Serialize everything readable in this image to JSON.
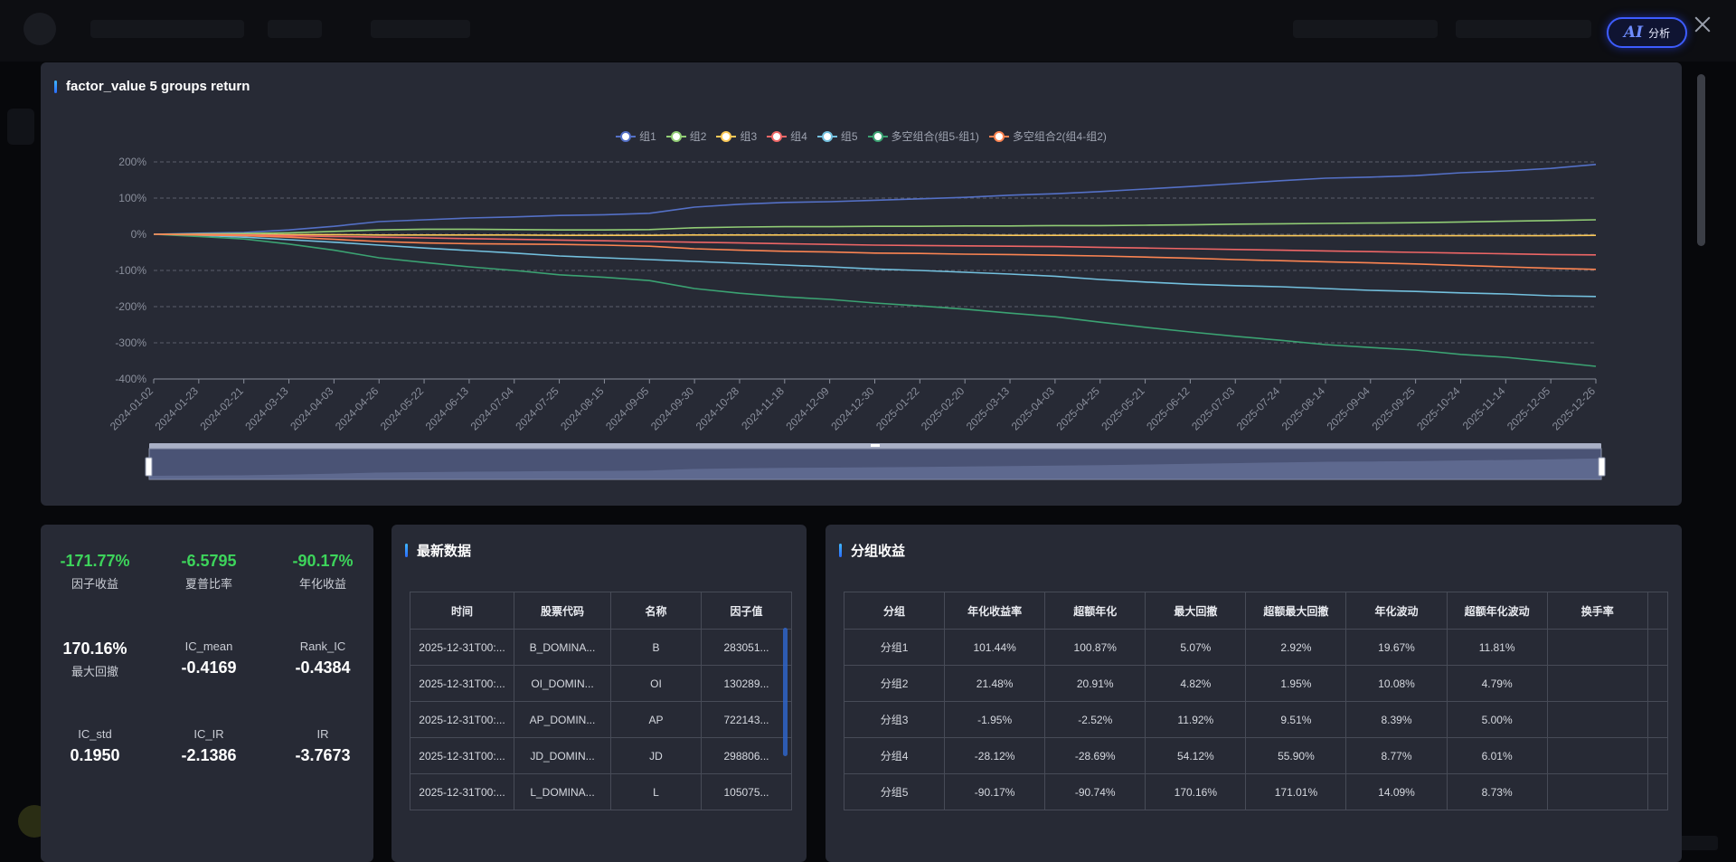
{
  "chart": {
    "title": "factor_value 5 groups return",
    "legend": [
      {
        "name": "组1",
        "color": "#5470c6"
      },
      {
        "name": "组2",
        "color": "#91cc75"
      },
      {
        "name": "组3",
        "color": "#fac858"
      },
      {
        "name": "组4",
        "color": "#ee6666"
      },
      {
        "name": "组5",
        "color": "#73c0de"
      },
      {
        "name": "多空组合(组5-组1)",
        "color": "#3ba272"
      },
      {
        "name": "多空组合2(组4-组2)",
        "color": "#fc8452"
      }
    ]
  },
  "chart_data": {
    "type": "line",
    "title": "factor_value 5 groups return",
    "xlabel": "",
    "ylabel": "",
    "x": [
      "2024-01-02",
      "2024-01-23",
      "2024-02-21",
      "2024-03-13",
      "2024-04-03",
      "2024-04-26",
      "2024-05-22",
      "2024-06-13",
      "2024-07-04",
      "2024-07-25",
      "2024-08-15",
      "2024-09-05",
      "2024-09-30",
      "2024-10-28",
      "2024-11-18",
      "2024-12-09",
      "2024-12-30",
      "2025-01-22",
      "2025-02-20",
      "2025-03-13",
      "2025-04-03",
      "2025-04-25",
      "2025-05-21",
      "2025-06-12",
      "2025-07-03",
      "2025-07-24",
      "2025-08-14",
      "2025-09-04",
      "2025-09-25",
      "2025-10-24",
      "2025-11-14",
      "2025-12-05",
      "2025-12-26"
    ],
    "yticks": [
      "200%",
      "100%",
      "0%",
      "-100%",
      "-200%",
      "-300%",
      "-400%"
    ],
    "ylim": [
      -400,
      200
    ],
    "grid": true,
    "legend_position": "top",
    "series": [
      {
        "name": "组1",
        "values": [
          0,
          3,
          5,
          12,
          22,
          35,
          40,
          45,
          48,
          52,
          54,
          58,
          75,
          83,
          88,
          90,
          94,
          98,
          102,
          108,
          112,
          118,
          125,
          132,
          140,
          148,
          155,
          158,
          162,
          170,
          175,
          182,
          193
        ]
      },
      {
        "name": "组2",
        "values": [
          0,
          1,
          2,
          4,
          8,
          12,
          14,
          14,
          13,
          12,
          12,
          13,
          18,
          20,
          21,
          21,
          22,
          22,
          23,
          23,
          24,
          24,
          25,
          26,
          28,
          29,
          30,
          31,
          32,
          34,
          36,
          38,
          40
        ]
      },
      {
        "name": "组3",
        "values": [
          0,
          0,
          -1,
          -1,
          -1,
          -2,
          -2,
          -2,
          -2,
          -3,
          -3,
          -3,
          -2,
          -2,
          -2,
          -2,
          -2,
          -2,
          -2,
          -3,
          -3,
          -3,
          -3,
          -3,
          -4,
          -4,
          -4,
          -4,
          -4,
          -4,
          -4,
          -4,
          -3
        ]
      },
      {
        "name": "组4",
        "values": [
          0,
          -1,
          -2,
          -4,
          -6,
          -8,
          -10,
          -12,
          -14,
          -16,
          -18,
          -20,
          -22,
          -24,
          -26,
          -28,
          -30,
          -31,
          -32,
          -33,
          -34,
          -36,
          -38,
          -40,
          -42,
          -44,
          -46,
          -48,
          -50,
          -52,
          -54,
          -56,
          -57
        ]
      },
      {
        "name": "组5",
        "values": [
          0,
          -3,
          -8,
          -15,
          -22,
          -30,
          -38,
          -45,
          -52,
          -60,
          -65,
          -70,
          -75,
          -80,
          -85,
          -90,
          -96,
          -100,
          -105,
          -110,
          -116,
          -125,
          -132,
          -138,
          -142,
          -145,
          -150,
          -155,
          -158,
          -162,
          -165,
          -170,
          -172
        ]
      },
      {
        "name": "多空组合(组5-组1)",
        "values": [
          0,
          -6,
          -13,
          -27,
          -44,
          -65,
          -78,
          -90,
          -100,
          -112,
          -119,
          -128,
          -150,
          -163,
          -173,
          -180,
          -190,
          -198,
          -207,
          -218,
          -228,
          -243,
          -257,
          -270,
          -282,
          -293,
          -305,
          -313,
          -320,
          -332,
          -340,
          -352,
          -365
        ]
      },
      {
        "name": "多空组合2(组4-组2)",
        "values": [
          0,
          -2,
          -4,
          -8,
          -14,
          -20,
          -24,
          -26,
          -27,
          -28,
          -30,
          -33,
          -40,
          -44,
          -47,
          -49,
          -52,
          -53,
          -55,
          -56,
          -58,
          -60,
          -63,
          -66,
          -70,
          -73,
          -76,
          -79,
          -82,
          -86,
          -90,
          -94,
          -97
        ]
      }
    ]
  },
  "stats": {
    "factor_return": {
      "value": "-171.77%",
      "label": "因子收益"
    },
    "sharpe": {
      "value": "-6.5795",
      "label": "夏普比率"
    },
    "annual_return": {
      "value": "-90.17%",
      "label": "年化收益"
    },
    "max_drawdown": {
      "value": "170.16%",
      "label": "最大回撤"
    },
    "ic_mean": {
      "value": "-0.4169",
      "label": "IC_mean"
    },
    "rank_ic": {
      "value": "-0.4384",
      "label": "Rank_IC"
    },
    "ic_std": {
      "value": "0.1950",
      "label": "IC_std"
    },
    "ic_ir": {
      "value": "-2.1386",
      "label": "IC_IR"
    },
    "ir": {
      "value": "-3.7673",
      "label": "IR"
    }
  },
  "latest": {
    "title": "最新数据",
    "headers": [
      "时间",
      "股票代码",
      "名称",
      "因子值"
    ],
    "rows": [
      [
        "2025-12-31T00:...",
        "B_DOMINA...",
        "B",
        "283051..."
      ],
      [
        "2025-12-31T00:...",
        "OI_DOMIN...",
        "OI",
        "130289..."
      ],
      [
        "2025-12-31T00:...",
        "AP_DOMIN...",
        "AP",
        "722143..."
      ],
      [
        "2025-12-31T00:...",
        "JD_DOMIN...",
        "JD",
        "298806..."
      ],
      [
        "2025-12-31T00:...",
        "L_DOMINA...",
        "L",
        "105075..."
      ]
    ]
  },
  "groups": {
    "title": "分组收益",
    "headers": [
      "分组",
      "年化收益率",
      "超额年化",
      "最大回撤",
      "超额最大回撤",
      "年化波动",
      "超额年化波动",
      "换手率",
      ""
    ],
    "rows": [
      [
        "分组1",
        "101.44%",
        "100.87%",
        "5.07%",
        "2.92%",
        "19.67%",
        "11.81%",
        "",
        ""
      ],
      [
        "分组2",
        "21.48%",
        "20.91%",
        "4.82%",
        "1.95%",
        "10.08%",
        "4.79%",
        "",
        ""
      ],
      [
        "分组3",
        "-1.95%",
        "-2.52%",
        "11.92%",
        "9.51%",
        "8.39%",
        "5.00%",
        "",
        ""
      ],
      [
        "分组4",
        "-28.12%",
        "-28.69%",
        "54.12%",
        "55.90%",
        "8.77%",
        "6.01%",
        "",
        ""
      ],
      [
        "分组5",
        "-90.17%",
        "-90.74%",
        "170.16%",
        "171.01%",
        "14.09%",
        "8.73%",
        "",
        ""
      ]
    ]
  },
  "ai_button": {
    "label": "分析",
    "mark": "AI"
  }
}
